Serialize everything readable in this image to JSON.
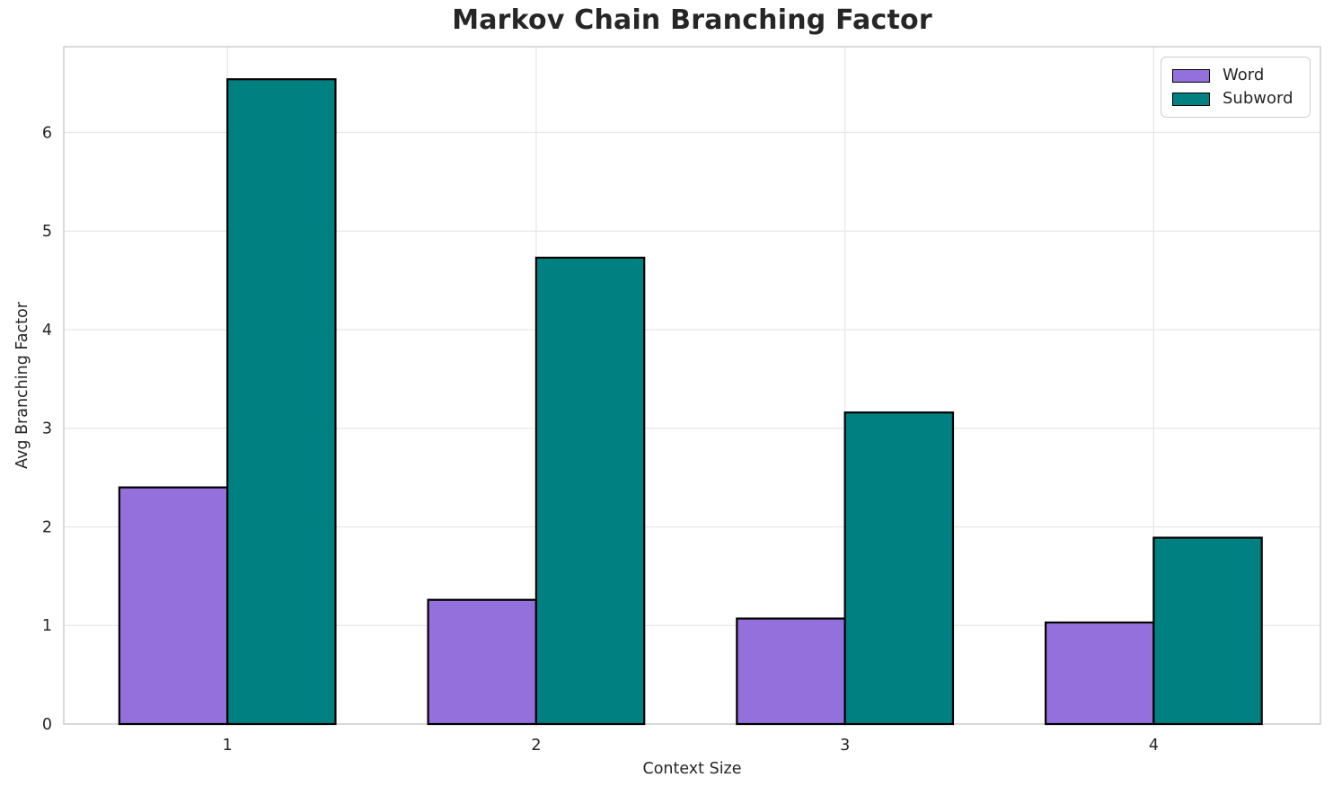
{
  "chart_data": {
    "type": "bar",
    "title": "Markov Chain Branching Factor",
    "xlabel": "Context Size",
    "ylabel": "Avg Branching Factor",
    "categories": [
      "1",
      "2",
      "3",
      "4"
    ],
    "series": [
      {
        "name": "Word",
        "color": "#9370DB",
        "values": [
          2.4,
          1.26,
          1.07,
          1.03
        ]
      },
      {
        "name": "Subword",
        "color": "#008080",
        "values": [
          6.54,
          4.73,
          3.16,
          1.89
        ]
      }
    ],
    "bar_edge_color": "#000000",
    "bar_width": 0.35,
    "xlim": [
      0.47,
      4.54
    ],
    "ylim": [
      0,
      6.87
    ],
    "yticks": [
      0,
      1,
      2,
      3,
      4,
      5,
      6
    ],
    "grid": true,
    "legend_position": "upper right"
  }
}
